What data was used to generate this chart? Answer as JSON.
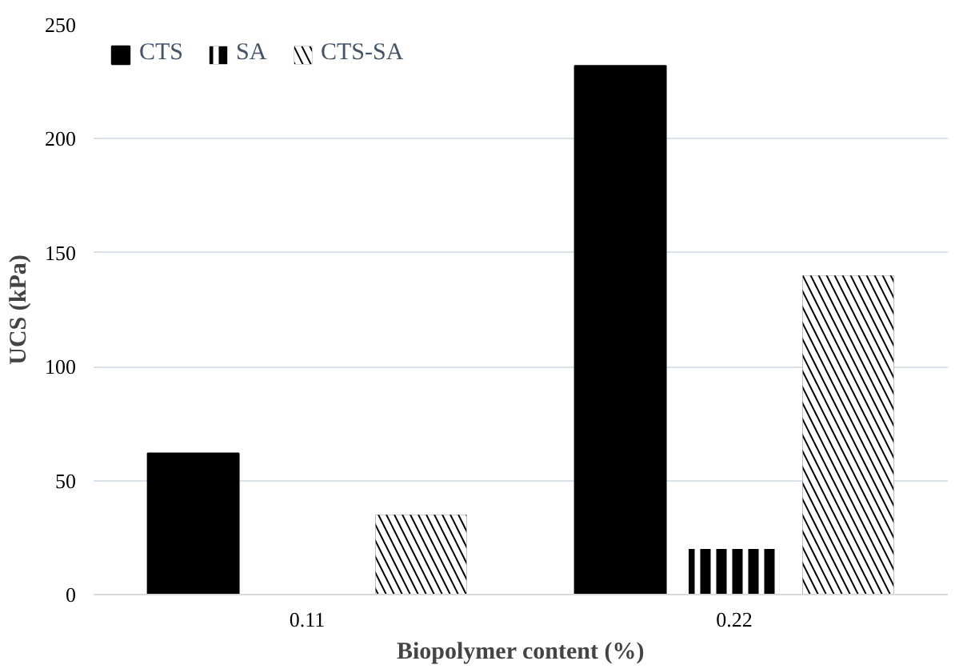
{
  "chart_data": {
    "type": "bar",
    "xlabel": "Biopolymer content (%)",
    "ylabel": "UCS (kPa)",
    "categories": [
      "0.11",
      "0.22"
    ],
    "series": [
      {
        "name": "CTS",
        "color": "#000000",
        "values": [
          62,
          232
        ]
      },
      {
        "name": "SA",
        "color": "#000000",
        "values": [
          null,
          20
        ]
      },
      {
        "name": "CTS-SA",
        "color": "#000000",
        "values": [
          35,
          140
        ]
      }
    ],
    "ylim": [
      0,
      250
    ],
    "yticks": [
      0,
      50,
      100,
      150,
      200,
      250
    ],
    "grid": "y",
    "legend": "top left"
  }
}
